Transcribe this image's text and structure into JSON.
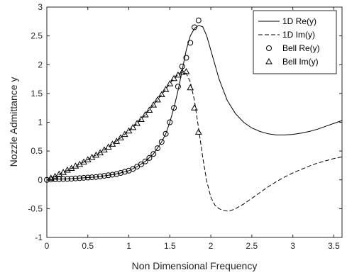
{
  "chart_data": {
    "type": "line",
    "title": "",
    "xlabel": "Non Dimensional Frequency",
    "ylabel": "Nozzle Admittance y",
    "xlim": [
      0,
      3.6
    ],
    "ylim": [
      -1,
      3
    ],
    "xticks": [
      0,
      0.5,
      1,
      1.5,
      2,
      2.5,
      3,
      3.5
    ],
    "xtick_labels": [
      "0",
      "0.5",
      "1",
      "1.5",
      "2",
      "2.5",
      "3",
      "3.5"
    ],
    "yticks": [
      -1,
      -0.5,
      0,
      0.5,
      1,
      1.5,
      2,
      2.5,
      3
    ],
    "ytick_labels": [
      "-1",
      "-0.5",
      "0",
      "0.5",
      "1",
      "1.5",
      "2",
      "2.5",
      "3"
    ],
    "grid": false,
    "legend_position": "top-right",
    "colors": {
      "line": "#000000",
      "axis": "#262626",
      "background": "#ffffff"
    },
    "series": [
      {
        "name": "1D Re(y)",
        "style": "solid",
        "x": [
          0,
          0.1,
          0.2,
          0.3,
          0.4,
          0.5,
          0.6,
          0.7,
          0.8,
          0.9,
          1.0,
          1.1,
          1.2,
          1.3,
          1.4,
          1.45,
          1.5,
          1.55,
          1.6,
          1.65,
          1.7,
          1.75,
          1.8,
          1.85,
          1.9,
          1.95,
          2.0,
          2.1,
          2.2,
          2.3,
          2.4,
          2.5,
          2.6,
          2.7,
          2.8,
          2.9,
          3.0,
          3.1,
          3.2,
          3.3,
          3.4,
          3.5,
          3.6
        ],
        "y": [
          0,
          0.01,
          0.015,
          0.02,
          0.03,
          0.04,
          0.05,
          0.07,
          0.09,
          0.12,
          0.16,
          0.23,
          0.32,
          0.45,
          0.66,
          0.8,
          1.0,
          1.25,
          1.55,
          1.9,
          2.25,
          2.5,
          2.63,
          2.68,
          2.66,
          2.5,
          2.25,
          1.75,
          1.38,
          1.15,
          1.0,
          0.9,
          0.84,
          0.8,
          0.78,
          0.78,
          0.79,
          0.81,
          0.84,
          0.88,
          0.93,
          0.98,
          1.03
        ]
      },
      {
        "name": "1D Im(y)",
        "style": "dashed",
        "x": [
          0,
          0.1,
          0.2,
          0.3,
          0.4,
          0.5,
          0.6,
          0.7,
          0.8,
          0.9,
          1.0,
          1.1,
          1.2,
          1.3,
          1.4,
          1.5,
          1.55,
          1.6,
          1.65,
          1.7,
          1.75,
          1.8,
          1.85,
          1.9,
          1.95,
          2.0,
          2.05,
          2.1,
          2.15,
          2.2,
          2.25,
          2.3,
          2.4,
          2.5,
          2.6,
          2.7,
          2.8,
          2.9,
          3.0,
          3.1,
          3.2,
          3.3,
          3.4,
          3.5,
          3.6
        ],
        "y": [
          0,
          0.06,
          0.13,
          0.2,
          0.27,
          0.35,
          0.43,
          0.52,
          0.62,
          0.73,
          0.85,
          0.98,
          1.13,
          1.3,
          1.48,
          1.67,
          1.76,
          1.83,
          1.87,
          1.85,
          1.7,
          1.38,
          0.9,
          0.4,
          -0.02,
          -0.3,
          -0.44,
          -0.5,
          -0.53,
          -0.54,
          -0.53,
          -0.5,
          -0.42,
          -0.32,
          -0.22,
          -0.12,
          -0.03,
          0.05,
          0.12,
          0.18,
          0.24,
          0.29,
          0.33,
          0.37,
          0.4
        ]
      },
      {
        "name": "Bell Re(y)",
        "style": "circle",
        "x": [
          0,
          0.05,
          0.1,
          0.15,
          0.2,
          0.25,
          0.3,
          0.35,
          0.4,
          0.45,
          0.5,
          0.55,
          0.6,
          0.65,
          0.7,
          0.75,
          0.8,
          0.85,
          0.9,
          0.95,
          1.0,
          1.05,
          1.1,
          1.15,
          1.2,
          1.25,
          1.3,
          1.35,
          1.4,
          1.45,
          1.5,
          1.55,
          1.6,
          1.65,
          1.7,
          1.75,
          1.8,
          1.85
        ],
        "y": [
          0,
          0.005,
          0.01,
          0.012,
          0.015,
          0.017,
          0.02,
          0.025,
          0.03,
          0.035,
          0.04,
          0.045,
          0.05,
          0.06,
          0.07,
          0.08,
          0.09,
          0.1,
          0.12,
          0.14,
          0.16,
          0.19,
          0.23,
          0.27,
          0.32,
          0.38,
          0.45,
          0.55,
          0.66,
          0.8,
          1.0,
          1.25,
          1.62,
          1.97,
          2.12,
          2.38,
          2.65,
          2.77
        ]
      },
      {
        "name": "Bell Im(y)",
        "style": "triangle",
        "x": [
          0.05,
          0.1,
          0.15,
          0.2,
          0.25,
          0.3,
          0.35,
          0.4,
          0.45,
          0.5,
          0.55,
          0.6,
          0.65,
          0.7,
          0.75,
          0.8,
          0.85,
          0.9,
          0.95,
          1.0,
          1.05,
          1.1,
          1.15,
          1.2,
          1.25,
          1.3,
          1.35,
          1.4,
          1.45,
          1.5,
          1.55,
          1.6,
          1.65,
          1.7,
          1.75,
          1.8,
          1.85
        ],
        "y": [
          0.03,
          0.06,
          0.1,
          0.13,
          0.17,
          0.2,
          0.24,
          0.27,
          0.31,
          0.35,
          0.39,
          0.43,
          0.47,
          0.52,
          0.57,
          0.62,
          0.67,
          0.73,
          0.79,
          0.85,
          0.91,
          0.98,
          1.05,
          1.13,
          1.21,
          1.3,
          1.39,
          1.48,
          1.57,
          1.67,
          1.76,
          1.82,
          1.87,
          1.88,
          1.6,
          1.25,
          0.83
        ]
      }
    ]
  }
}
